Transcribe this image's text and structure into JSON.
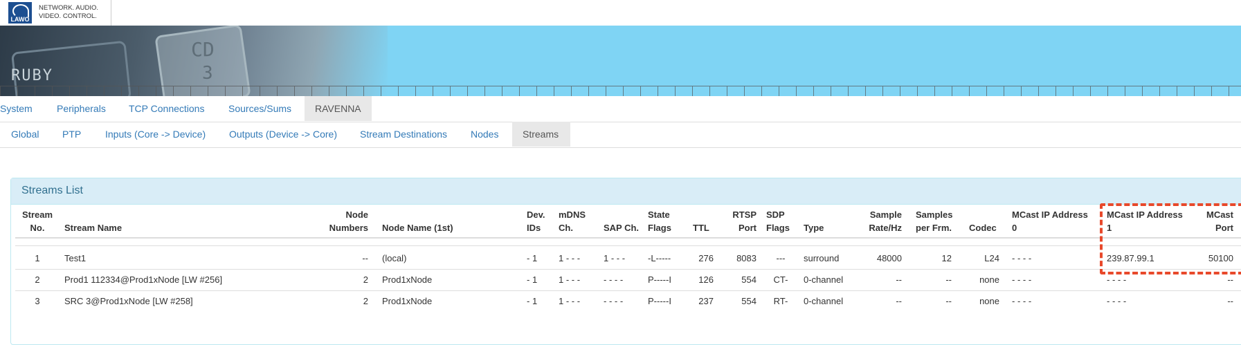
{
  "brand": {
    "logo_text": "LAWO",
    "tagline1": "NETWORK. AUDIO.",
    "tagline2": "VIDEO. CONTROL."
  },
  "banner": {
    "ruby": "RUBY",
    "cd": "CD",
    "cd_num": "3"
  },
  "tabs_primary": [
    {
      "label": "System",
      "active": false
    },
    {
      "label": "Peripherals",
      "active": false
    },
    {
      "label": "TCP Connections",
      "active": false
    },
    {
      "label": "Sources/Sums",
      "active": false
    },
    {
      "label": "RAVENNA",
      "active": true
    }
  ],
  "tabs_secondary": [
    {
      "label": "Global",
      "active": false
    },
    {
      "label": "PTP",
      "active": false
    },
    {
      "label": "Inputs (Core -> Device)",
      "active": false
    },
    {
      "label": "Outputs (Device -> Core)",
      "active": false
    },
    {
      "label": "Stream Destinations",
      "active": false
    },
    {
      "label": "Nodes",
      "active": false
    },
    {
      "label": "Streams",
      "active": true
    }
  ],
  "panel": {
    "title": "Streams List"
  },
  "table": {
    "headers": [
      [
        "Stream",
        "No."
      ],
      [
        "",
        "Stream Name"
      ],
      [
        "Node",
        "Numbers"
      ],
      [
        "",
        "Node Name (1st)"
      ],
      [
        "Dev.",
        "IDs"
      ],
      [
        "mDNS",
        "Ch."
      ],
      [
        "",
        "SAP Ch."
      ],
      [
        "State",
        "Flags"
      ],
      [
        "",
        "TTL"
      ],
      [
        "RTSP",
        "Port"
      ],
      [
        "SDP",
        "Flags"
      ],
      [
        "",
        "Type"
      ],
      [
        "Sample",
        "Rate/Hz"
      ],
      [
        "Samples",
        "per Frm."
      ],
      [
        "",
        "Codec"
      ],
      [
        "MCast IP Address",
        "0"
      ],
      [
        "MCast IP Address",
        "1"
      ],
      [
        "MCast",
        "Port"
      ]
    ],
    "rows": [
      [
        "1",
        "Test1",
        "--",
        "(local)",
        "- 1",
        "1 - - -",
        "1 - - -",
        "-L-----",
        "276",
        "8083",
        "---",
        "surround",
        "48000",
        "12",
        "L24",
        "- - - -",
        "239.87.99.1",
        "50100"
      ],
      [
        "2",
        "Prod1 112334@Prod1xNode [LW #256]",
        "2",
        "Prod1xNode",
        "- 1",
        "1 - - -",
        "- - - -",
        "P-----I",
        "126",
        "554",
        "CT-",
        "0-channel",
        "--",
        "--",
        "none",
        "- - - -",
        "- - - -",
        "--"
      ],
      [
        "3",
        "SRC 3@Prod1xNode [LW #258]",
        "2",
        "Prod1xNode",
        "- 1",
        "1 - - -",
        "- - - -",
        "P-----I",
        "237",
        "554",
        "RT-",
        "0-channel",
        "--",
        "--",
        "none",
        "- - - -",
        "- - - -",
        "--"
      ]
    ]
  },
  "colors": {
    "link": "#337ab7",
    "panel_heading": "#d9edf7",
    "panel_title": "#31708f",
    "banner": "#7fd4f4",
    "highlight": "#e8492b"
  }
}
